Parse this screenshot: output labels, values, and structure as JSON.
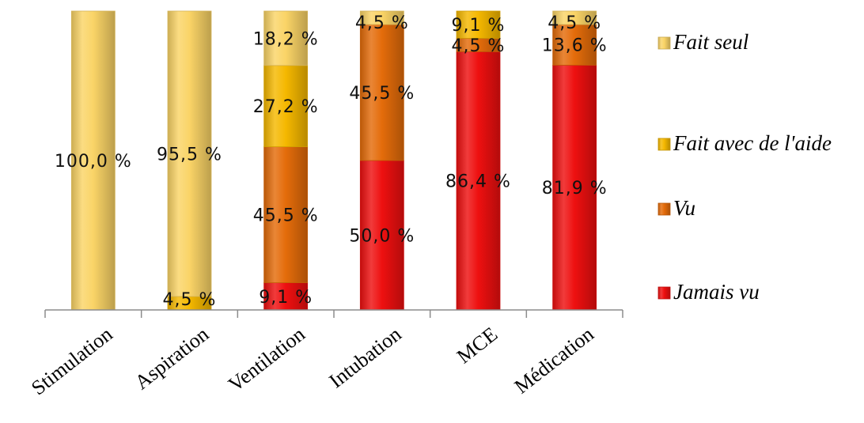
{
  "chart_data": {
    "type": "bar",
    "stacked": true,
    "categories": [
      "Stimulation",
      "Aspiration",
      "Ventilation",
      "Intubation",
      "MCE",
      "Médication"
    ],
    "series": [
      {
        "name": "Jamais vu",
        "color": "#ee1010",
        "values": [
          0,
          0,
          9.1,
          50.0,
          86.4,
          81.9
        ],
        "labels": [
          "",
          "",
          "9,1 %",
          "50,0 %",
          "86,4 %",
          "81,9 %"
        ]
      },
      {
        "name": "Vu",
        "color": "#e46c0a",
        "values": [
          0,
          0,
          45.5,
          45.5,
          4.5,
          13.6
        ],
        "labels": [
          "",
          "",
          "45,5 %",
          "45,5 %",
          "4,5 %",
          "13,6 %"
        ]
      },
      {
        "name": "Fait avec de l'aide",
        "color": "#f5b800",
        "values": [
          0,
          4.5,
          27.2,
          0,
          9.1,
          0
        ],
        "labels": [
          "",
          "4,5 %",
          "27,2 %",
          "",
          "9,1 %",
          ""
        ]
      },
      {
        "name": "Fait seul",
        "color": "#fad467",
        "values": [
          100.0,
          95.5,
          18.2,
          4.5,
          0,
          4.5
        ],
        "labels": [
          "100,0 %",
          "95,5 %",
          "18,2 %",
          "4,5 %",
          "",
          "4,5 %"
        ]
      }
    ],
    "legend_position": "right",
    "ylim": [
      0,
      100
    ],
    "grid": false
  }
}
